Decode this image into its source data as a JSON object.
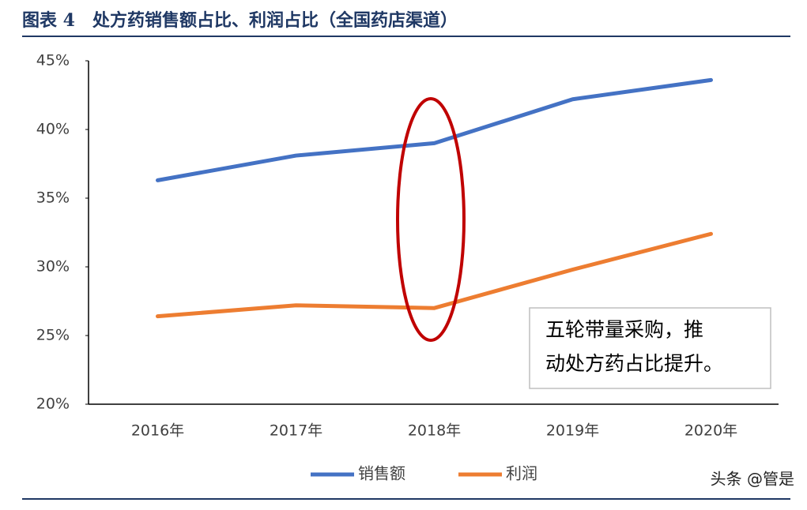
{
  "chart_data": {
    "type": "line",
    "title": "图表 4　处方药销售额占比、利润占比（全国药店渠道）",
    "categories": [
      "2016年",
      "2017年",
      "2018年",
      "2019年",
      "2020年"
    ],
    "series": [
      {
        "name": "销售额",
        "color": "#4472c4",
        "values": [
          36.3,
          38.1,
          39.0,
          42.2,
          43.6
        ]
      },
      {
        "name": "利润",
        "color": "#ed7d31",
        "values": [
          26.4,
          27.2,
          27.0,
          29.8,
          32.4
        ]
      }
    ],
    "ylim": [
      20,
      45
    ],
    "yticks": [
      {
        "value": 20,
        "label": "20%"
      },
      {
        "value": 25,
        "label": "25%"
      },
      {
        "value": 30,
        "label": "30%"
      },
      {
        "value": 35,
        "label": "35%"
      },
      {
        "value": 40,
        "label": "40%"
      },
      {
        "value": 45,
        "label": "45%"
      }
    ],
    "grid": false,
    "legend": "bottom",
    "annotation": [
      "五轮带量采购，推",
      "动处方药占比提升。"
    ],
    "watermark": "头条 @管是"
  }
}
